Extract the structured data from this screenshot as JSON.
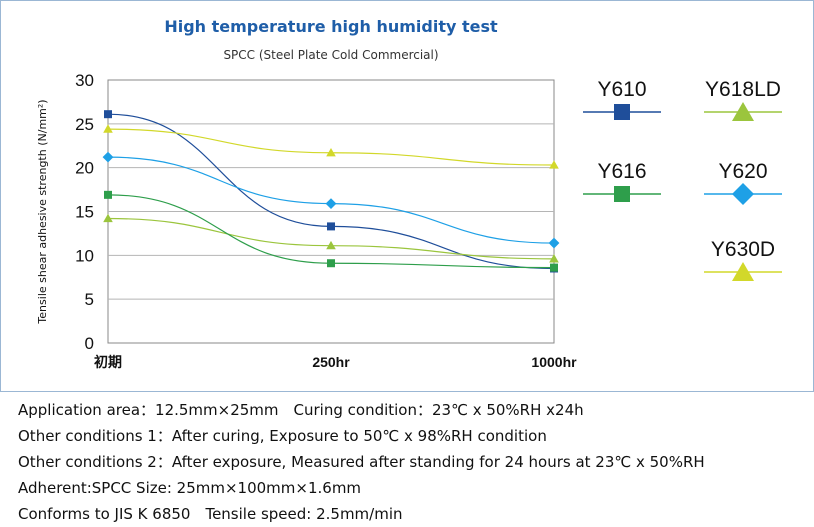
{
  "chart_data": {
    "type": "line",
    "title": "High temperature high humidity test",
    "subtitle": "SPCC (Steel Plate Cold Commercial)",
    "ylabel": "Tensile shear adhesive strength (N/mm²)",
    "xlabel": "",
    "categories": [
      "初期",
      "250hr",
      "1000hr"
    ],
    "ylim": [
      0,
      30
    ],
    "yticks": [
      0,
      5,
      10,
      15,
      20,
      25,
      30
    ],
    "grid": true,
    "legend_position": "right",
    "series": [
      {
        "name": "Y610",
        "values": [
          26.1,
          13.3,
          8.5
        ],
        "color": "#1f4e9a",
        "marker": "square"
      },
      {
        "name": "Y618LD",
        "values": [
          14.2,
          11.1,
          9.6
        ],
        "color": "#9bc53d",
        "marker": "triangle"
      },
      {
        "name": "Y616",
        "values": [
          16.9,
          9.1,
          8.6
        ],
        "color": "#2e9e4b",
        "marker": "square"
      },
      {
        "name": "Y620",
        "values": [
          21.2,
          15.9,
          11.4
        ],
        "color": "#1ea0e6",
        "marker": "diamond"
      },
      {
        "name": "Y630D",
        "values": [
          24.4,
          21.7,
          20.3
        ],
        "color": "#d2d82a",
        "marker": "triangle"
      }
    ]
  },
  "notes": [
    "Application area：12.5mm×25mm　Curing condition：23℃ x 50%RH x24h",
    "Other conditions 1：After curing, Exposure to 50℃ x 98%RH condition",
    "Other conditions 2：After exposure, Measured after standing for 24 hours at 23℃ x 50%RH",
    "Adherent:SPCC Size: 25mm×100mm×1.6mm",
    "Conforms to JIS K 6850　Tensile speed: 2.5mm/min"
  ]
}
